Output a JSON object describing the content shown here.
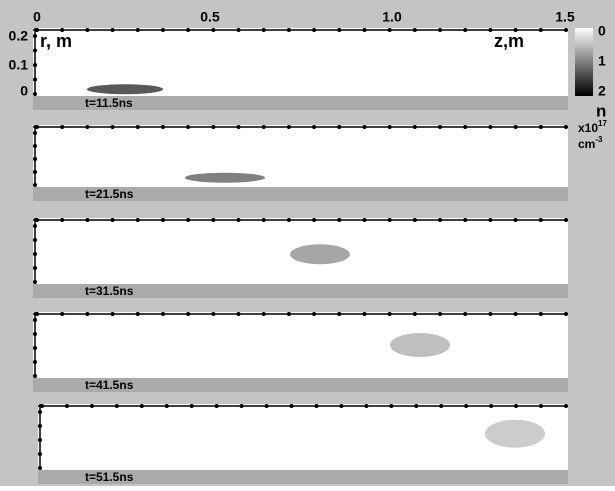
{
  "axes": {
    "z_ticks": [
      "0",
      "0.5",
      "1.0",
      "1.5"
    ],
    "r_ticks": [
      "0.2",
      "0.1",
      "0"
    ],
    "r_label": "r, m",
    "z_label": "z,m"
  },
  "colorbar": {
    "ticks": [
      "0",
      "1",
      "2"
    ],
    "label": "n",
    "unit_base": "x10",
    "unit_exp": "17",
    "unit_cm": "cm",
    "unit_cm_exp": "-3"
  },
  "panels": [
    {
      "label": "t=11.5ns"
    },
    {
      "label": "t=21.5ns"
    },
    {
      "label": "t=31.5ns"
    },
    {
      "label": "t=41.5ns"
    },
    {
      "label": "t=51.5ns"
    }
  ]
}
